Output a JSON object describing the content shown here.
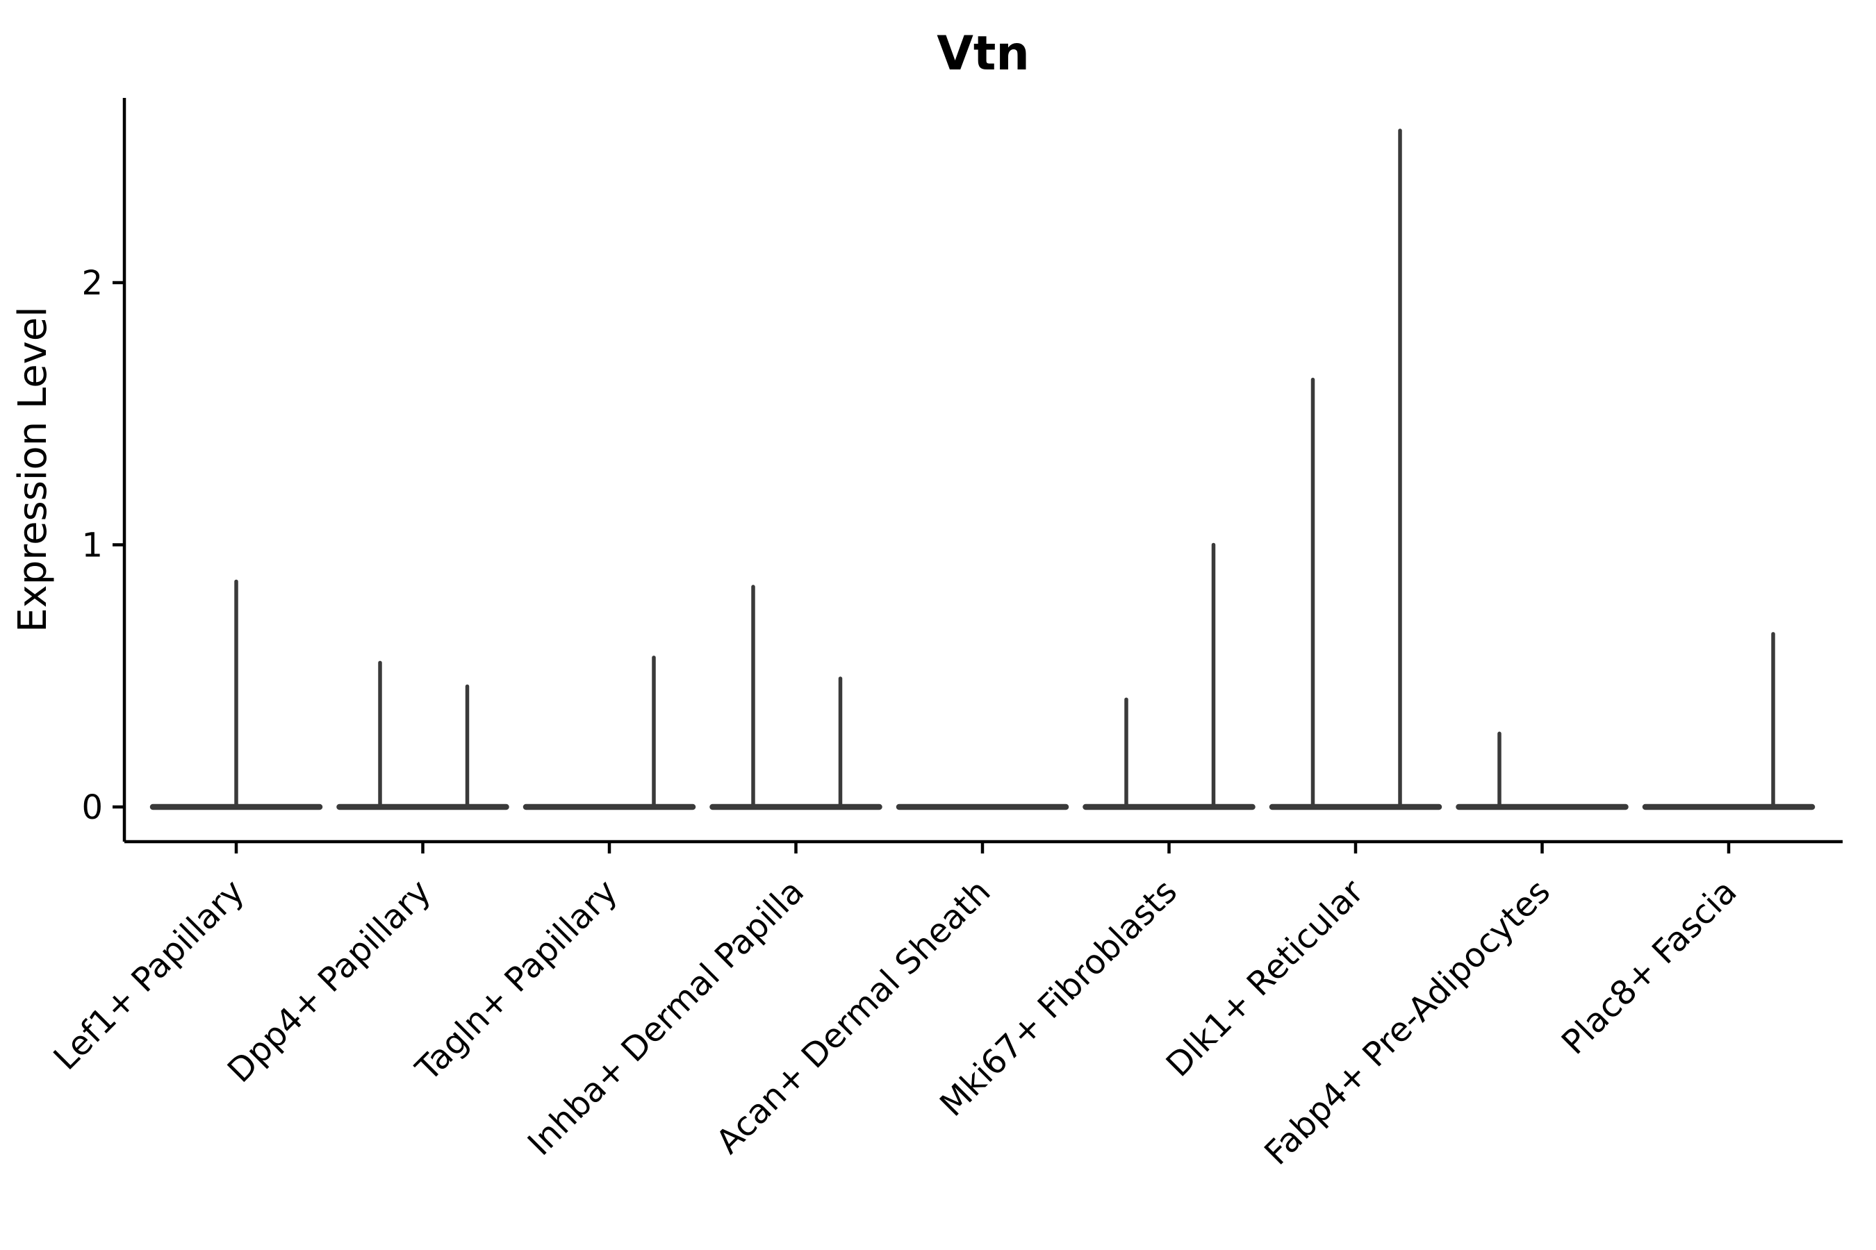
{
  "title": "Vtn",
  "axes": {
    "ylabel": "Expression Level",
    "ytick_labels": [
      "0",
      "1",
      "2"
    ]
  },
  "colors": {
    "background": "#ffffff",
    "axis": "#000000",
    "text": "#000000",
    "violin": "#3a3a3a"
  },
  "chart_data": {
    "type": "violin",
    "title": "Vtn",
    "xlabel": "",
    "ylabel": "Expression Level",
    "yticks": [
      0,
      1,
      2
    ],
    "ylim": [
      -0.13,
      2.7
    ],
    "grid": false,
    "legend": null,
    "categories": [
      "Lef1+ Papillary",
      "Dpp4+ Papillary",
      "Tagln+ Papillary",
      "Inhba+ Dermal Papilla",
      "Acan+ Dermal Sheath",
      "Mki67+ Fibroblasts",
      "Dlk1+ Reticular",
      "Fabp4+ Pre-Adipocytes",
      "Plac8+ Fascia"
    ],
    "description": "Violin plot of Vtn expression per fibroblast cluster; each violin is collapsed flat at 0 (most cells have zero expression) with thin vertical density spikes reaching the maximum expressing cells.",
    "violins": [
      {
        "category": "Lef1+ Papillary",
        "baseline_value": 0,
        "spikes": [
          {
            "pos": "center",
            "value": 0.86
          }
        ]
      },
      {
        "category": "Dpp4+ Papillary",
        "baseline_value": 0,
        "spikes": [
          {
            "pos": "left",
            "value": 0.55
          },
          {
            "pos": "right",
            "value": 0.46
          }
        ]
      },
      {
        "category": "Tagln+ Papillary",
        "baseline_value": 0,
        "spikes": [
          {
            "pos": "right",
            "value": 0.57
          }
        ]
      },
      {
        "category": "Inhba+ Dermal Papilla",
        "baseline_value": 0,
        "spikes": [
          {
            "pos": "left",
            "value": 0.84
          },
          {
            "pos": "right",
            "value": 0.49
          }
        ]
      },
      {
        "category": "Acan+ Dermal Sheath",
        "baseline_value": 0,
        "spikes": []
      },
      {
        "category": "Mki67+ Fibroblasts",
        "baseline_value": 0,
        "spikes": [
          {
            "pos": "left",
            "value": 0.41
          },
          {
            "pos": "right",
            "value": 1.0
          }
        ]
      },
      {
        "category": "Dlk1+ Reticular",
        "baseline_value": 0,
        "spikes": [
          {
            "pos": "left",
            "value": 1.63
          },
          {
            "pos": "right",
            "value": 2.58
          }
        ]
      },
      {
        "category": "Fabp4+ Pre-Adipocytes",
        "baseline_value": 0,
        "spikes": [
          {
            "pos": "left",
            "value": 0.28
          }
        ]
      },
      {
        "category": "Plac8+ Fascia",
        "baseline_value": 0,
        "spikes": [
          {
            "pos": "right",
            "value": 0.66
          }
        ]
      }
    ]
  }
}
